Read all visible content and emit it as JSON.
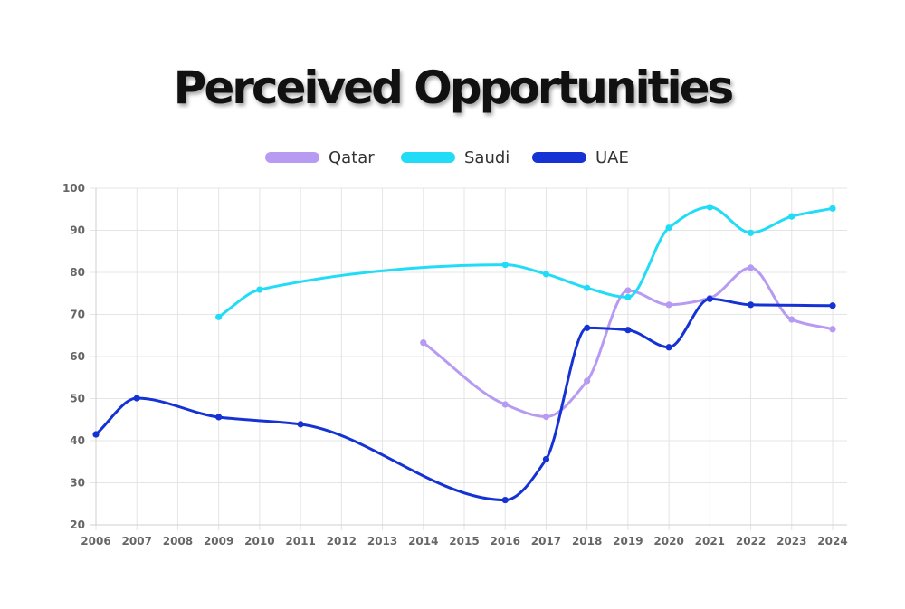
{
  "chart_data": {
    "type": "line",
    "title": "Perceived Opportunities",
    "xlabel": "",
    "ylabel": "",
    "xticks": [
      "2006",
      "2007",
      "2008",
      "2009",
      "2010",
      "2011",
      "2012",
      "2013",
      "2014",
      "2015",
      "2016",
      "2017",
      "2018",
      "2019",
      "2020",
      "2021",
      "2022",
      "2023",
      "2024"
    ],
    "ylim": [
      20,
      100
    ],
    "yticks": [
      20,
      30,
      40,
      50,
      60,
      70,
      80,
      90,
      100
    ],
    "grid": true,
    "legend_position": "top-center",
    "series": [
      {
        "name": "Qatar",
        "color": "#b79af2",
        "points": [
          [
            2014,
            63.3
          ],
          [
            2016,
            48.6
          ],
          [
            2017,
            45.7
          ],
          [
            2018,
            54.2
          ],
          [
            2019,
            75.7
          ],
          [
            2020,
            72.3
          ],
          [
            2021,
            73.9
          ],
          [
            2022,
            81.1
          ],
          [
            2023,
            68.8
          ],
          [
            2024,
            66.5
          ]
        ]
      },
      {
        "name": "Saudi",
        "color": "#22dcf7",
        "points": [
          [
            2009,
            69.4
          ],
          [
            2010,
            75.9
          ],
          [
            2016,
            81.8
          ],
          [
            2017,
            79.6
          ],
          [
            2018,
            76.3
          ],
          [
            2019,
            74.1
          ],
          [
            2020,
            90.6
          ],
          [
            2021,
            95.5
          ],
          [
            2022,
            89.4
          ],
          [
            2023,
            93.3
          ],
          [
            2024,
            95.2
          ]
        ]
      },
      {
        "name": "UAE",
        "color": "#1533d4",
        "points": [
          [
            2006,
            41.5
          ],
          [
            2007,
            50.1
          ],
          [
            2009,
            45.6
          ],
          [
            2011,
            43.9
          ],
          [
            2016,
            25.9
          ],
          [
            2017,
            35.6
          ],
          [
            2018,
            66.8
          ],
          [
            2019,
            66.3
          ],
          [
            2020,
            62.2
          ],
          [
            2021,
            73.7
          ],
          [
            2022,
            72.3
          ],
          [
            2024,
            72.1
          ]
        ]
      }
    ]
  }
}
